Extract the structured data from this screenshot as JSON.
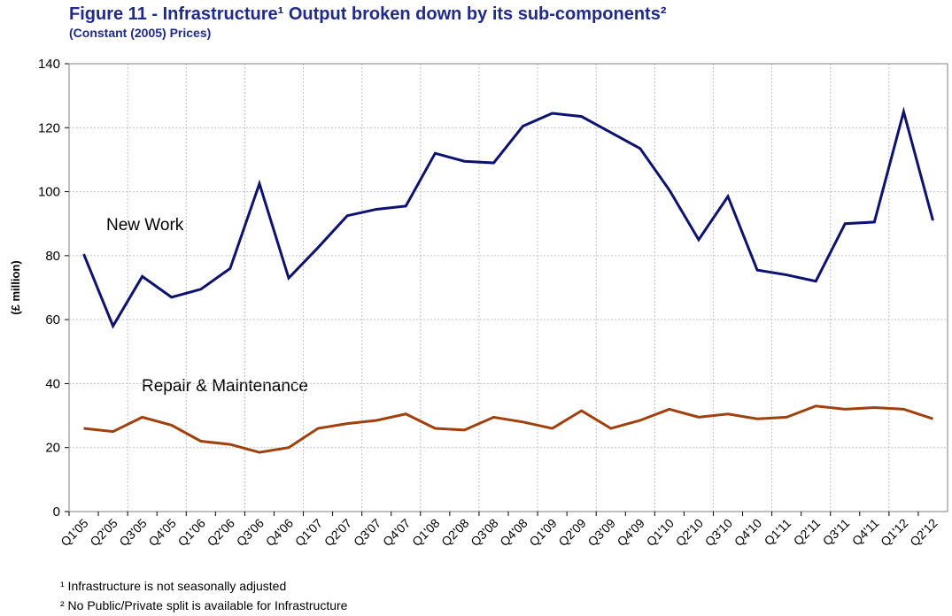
{
  "chart_data": {
    "type": "line",
    "title": "Figure 11 - Infrastructure¹ Output broken down by its sub-components²",
    "subtitle": "(Constant (2005) Prices)",
    "y_label": "(£ million)",
    "annotations": [
      "New Work",
      "Repair & Maintenance"
    ],
    "footnotes": [
      "¹ Infrastructure is not seasonally adjusted",
      "² No Public/Private split is available for Infrastructure"
    ],
    "categories": [
      "Q1'05",
      "Q2'05",
      "Q3'05",
      "Q4'05",
      "Q1'06",
      "Q2'06",
      "Q3'06",
      "Q4'06",
      "Q1'07",
      "Q2'07",
      "Q3'07",
      "Q4'07",
      "Q1'08",
      "Q2'08",
      "Q3'08",
      "Q4'08",
      "Q1'09",
      "Q2'09",
      "Q3'09",
      "Q4'09",
      "Q1'10",
      "Q2'10",
      "Q3'10",
      "Q4'10",
      "Q1'11",
      "Q2'11",
      "Q3'11",
      "Q4'11",
      "Q1'12",
      "Q2'12"
    ],
    "series": [
      {
        "name": "New Work",
        "color": "#0d1270",
        "values": [
          80.5,
          58,
          73.5,
          67,
          69.5,
          76,
          102.5,
          73,
          82.5,
          92.5,
          94.5,
          95.5,
          112,
          109.5,
          109,
          120.5,
          124.5,
          123.5,
          118.5,
          113.5,
          100.5,
          85,
          98.5,
          75.5,
          74,
          72,
          90,
          90.5,
          125,
          91
        ]
      },
      {
        "name": "Repair & Maintenance",
        "color": "#a0400c",
        "values": [
          26,
          25,
          29.5,
          27,
          22,
          21,
          18.5,
          20,
          26,
          27.5,
          28.5,
          30.5,
          26,
          25.5,
          29.5,
          28,
          26,
          31.5,
          26,
          28.5,
          32,
          29.5,
          30.5,
          29,
          29.5,
          33,
          32,
          32.5,
          32,
          29
        ]
      }
    ],
    "ylim": [
      0,
      140
    ],
    "yticks": [
      0,
      20,
      40,
      60,
      80,
      100,
      120,
      140
    ],
    "grid": true
  }
}
